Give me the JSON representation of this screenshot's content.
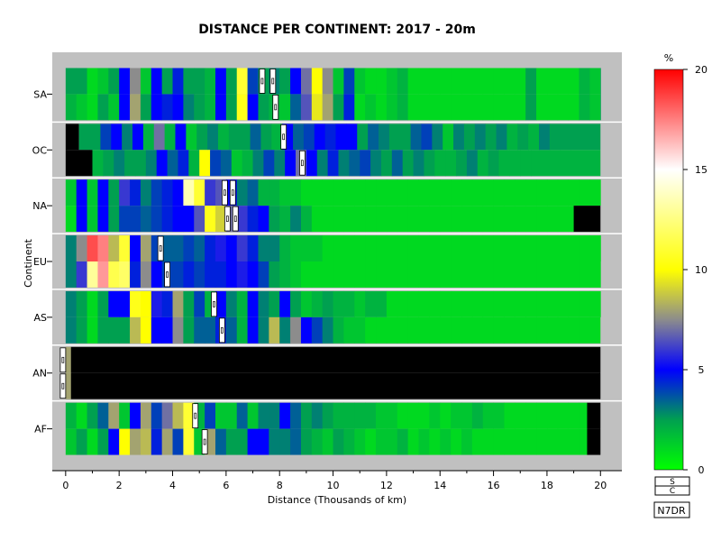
{
  "chart_data": {
    "type": "heatmap",
    "title": "DISTANCE PER CONTINENT: 2017 - 20m",
    "xlabel": "Distance (Thousands of km)",
    "ylabel": "Continent",
    "xlim": [
      -0.5,
      20.8
    ],
    "x_ticks": [
      "0",
      "2",
      "4",
      "6",
      "8",
      "10",
      "12",
      "14",
      "16",
      "18",
      "20"
    ],
    "colorbar": {
      "label": "%",
      "range": [
        0,
        20
      ],
      "ticks": [
        "0",
        "5",
        "10",
        "15",
        "20"
      ],
      "stops": [
        {
          "v": 0,
          "color": "#00ff00"
        },
        {
          "v": 2.5,
          "color": "#00a050"
        },
        {
          "v": 5,
          "color": "#0000ff"
        },
        {
          "v": 7.5,
          "color": "#8c8c8c"
        },
        {
          "v": 10,
          "color": "#ffff00"
        },
        {
          "v": 15,
          "color": "#ffffff"
        },
        {
          "v": 20,
          "color": "#ff0000"
        }
      ]
    },
    "no_data_color": "#000000",
    "continents": [
      {
        "name": "SA",
        "sub_rows": [
          {
            "zero_until": 0,
            "values": [
              2.5,
              2.5,
              1,
              1.5,
              2.5,
              5,
              7.5,
              1.5,
              5,
              2.5,
              4.5,
              2.5,
              2.5,
              2,
              5,
              2.5,
              11,
              4,
              2.5,
              3,
              2.5,
              5,
              7,
              10,
              7.5,
              1.5,
              4,
              1.5,
              1,
              1,
              1.5,
              2,
              1,
              1,
              1,
              1,
              1,
              1,
              1,
              1,
              1,
              1,
              1,
              2.5,
              1,
              1,
              1,
              1,
              2,
              1.5,
              3,
              2,
              1,
              1
            ],
            "nodata_from": null,
            "markers": [
              7.35,
              7.75
            ]
          },
          {
            "zero_until": 0,
            "values": [
              2,
              1.5,
              1,
              2.5,
              1.5,
              5,
              8,
              2.5,
              5,
              4.5,
              5,
              3,
              2.5,
              2,
              5,
              2.5,
              10.5,
              5,
              2.5,
              2,
              1.5,
              3.5,
              6.5,
              9.5,
              8,
              2.5,
              4.5,
              1,
              1.5,
              1,
              1.5,
              2,
              1,
              1,
              1,
              1,
              1,
              1,
              1,
              1,
              1,
              1,
              1,
              2.5,
              1,
              1,
              1,
              1,
              2,
              1.5,
              3,
              2,
              1,
              1
            ],
            "nodata_from": null,
            "markers": [
              7.85
            ]
          }
        ]
      },
      {
        "name": "OC",
        "sub_rows": [
          {
            "zero_until": 0.5,
            "values": [
              2.5,
              2.5,
              4,
              5,
              3,
              5,
              2,
              7,
              2,
              5,
              1.5,
              2.5,
              3,
              2,
              2.5,
              2.5,
              3.5,
              2.5,
              2,
              5,
              3.5,
              4,
              5,
              4.5,
              5,
              5,
              2.5,
              3.5,
              3,
              2.5,
              2.5,
              3.5,
              4,
              3,
              1.5,
              3,
              2.5,
              3,
              2.5,
              3,
              2,
              2.5,
              2,
              3,
              2.5,
              2.5
            ],
            "nodata_from": null,
            "markers": [
              8.15
            ]
          },
          {
            "zero_until": 1.0,
            "values": [
              2,
              2.5,
              3,
              2.5,
              2.5,
              3,
              5,
              3.5,
              4.5,
              2,
              10,
              4,
              3.5,
              1.5,
              2,
              3,
              4,
              3,
              5,
              7,
              5,
              3,
              4.5,
              3,
              3.5,
              4,
              3,
              2.5,
              3.5,
              2.5,
              3,
              2.5,
              2,
              2,
              2.5,
              3,
              2,
              2.5,
              2,
              2,
              2
            ],
            "nodata_from": null,
            "markers": [
              8.85
            ]
          }
        ]
      },
      {
        "name": "NA",
        "sub_rows": [
          {
            "zero_until": 0,
            "values": [
              1.5,
              5,
              1.5,
              5,
              2.5,
              6,
              4.5,
              3,
              4,
              4.5,
              5,
              13.5,
              11,
              6,
              6.5,
              5,
              3,
              3.5,
              2,
              2,
              1.5,
              1.5,
              1,
              1,
              1,
              1,
              1,
              1,
              1,
              1,
              1,
              1,
              1,
              1,
              1,
              1,
              1,
              1,
              1,
              1,
              1,
              1,
              1,
              1,
              1,
              1,
              1,
              1,
              1,
              1
            ],
            "nodata_from": null,
            "markers": [
              5.95,
              6.25
            ]
          },
          {
            "zero_until": 0,
            "values": [
              1,
              5,
              1.5,
              5,
              2.5,
              4,
              4,
              3.5,
              4,
              4.5,
              5,
              5,
              6.5,
              10.5,
              9,
              7,
              6,
              4.5,
              5,
              2.5,
              2,
              3,
              2,
              1,
              1,
              1,
              1,
              1,
              1,
              1,
              1,
              1,
              1,
              1,
              1,
              1,
              1,
              1,
              1,
              1,
              1,
              1,
              1,
              1,
              1,
              1,
              1,
              1,
              1
            ],
            "nodata_from": 19.0,
            "markers": [
              6.05,
              6.35
            ]
          }
        ]
      },
      {
        "name": "EU",
        "sub_rows": [
          {
            "zero_until": 0,
            "values": [
              3,
              7.5,
              18.5,
              17.5,
              8.5,
              11,
              5,
              8,
              4,
              3.5,
              3.5,
              4,
              3.5,
              4.5,
              5.5,
              5,
              6,
              4.5,
              3,
              3,
              2,
              1.5,
              1.5,
              1.5,
              1,
              1,
              1,
              1,
              1,
              1,
              1,
              1,
              1,
              1,
              1,
              1,
              1,
              1,
              1,
              1,
              1,
              1,
              1,
              1,
              1,
              1,
              1,
              1,
              1,
              1,
              1,
              1
            ],
            "nodata_from": null,
            "markers": [
              3.55
            ]
          },
          {
            "zero_until": 0,
            "values": [
              3,
              6,
              13,
              17,
              11.5,
              12,
              4.5,
              7.5,
              5,
              4,
              4,
              4.5,
              4,
              4.5,
              4.5,
              5,
              5.5,
              5,
              4,
              2.5,
              2,
              1.5,
              1,
              1,
              1,
              1,
              1,
              1,
              1,
              1,
              1,
              1,
              1,
              1,
              1,
              1,
              1,
              1,
              1,
              1,
              1,
              1,
              1,
              1,
              1,
              1,
              1,
              1,
              1,
              1
            ],
            "nodata_from": null,
            "markers": [
              3.8
            ]
          }
        ]
      },
      {
        "name": "AS",
        "sub_rows": [
          {
            "zero_until": 0,
            "values": [
              3,
              2.5,
              1,
              2.5,
              5,
              5,
              10.5,
              10,
              5.5,
              4.5,
              8,
              2.5,
              4,
              2,
              5,
              3,
              2,
              5,
              3,
              2.5,
              5,
              2.5,
              1.5,
              2,
              2.5,
              2,
              2,
              1.5,
              2,
              2,
              1,
              1,
              1,
              1,
              1,
              1,
              1,
              1,
              1,
              1,
              1,
              1,
              1,
              1,
              1,
              1,
              1,
              1,
              1,
              1
            ],
            "nodata_from": null,
            "markers": [
              5.55
            ]
          },
          {
            "zero_until": 0,
            "values": [
              3,
              2.5,
              1,
              2.5,
              2.5,
              2.5,
              8.5,
              10,
              5,
              5,
              7.5,
              2.5,
              3.5,
              3.5,
              4.5,
              3.5,
              2,
              5,
              3,
              8.5,
              3,
              7.5,
              5,
              4,
              3,
              2,
              1.5,
              1.5,
              1,
              1,
              1,
              1,
              1,
              1,
              1,
              1,
              1,
              1,
              1,
              1,
              1,
              1,
              1,
              1,
              1,
              1,
              1,
              1
            ],
            "nodata_from": null,
            "markers": [
              5.85
            ]
          }
        ]
      },
      {
        "name": "AN",
        "sub_rows": [
          {
            "zero_until": 0,
            "values": [
              8
            ],
            "nodata_from": 0.2,
            "markers": [
              -0.1
            ]
          },
          {
            "zero_until": 0,
            "values": [
              8
            ],
            "nodata_from": 0.2,
            "markers": [
              -0.1
            ]
          }
        ]
      },
      {
        "name": "AF",
        "sub_rows": [
          {
            "zero_until": 0,
            "values": [
              2,
              1,
              2.5,
              3.5,
              8,
              1.5,
              5,
              8,
              4,
              7,
              8.5,
              11,
              2,
              4,
              1.5,
              1.5,
              3.5,
              1.5,
              3,
              3,
              5,
              3.5,
              2.5,
              3,
              2.5,
              2,
              2,
              2,
              2,
              1.5,
              1.5,
              1,
              1,
              1,
              1.5,
              1,
              1.5,
              1.5,
              2,
              1.5,
              1.5,
              1,
              1,
              1,
              1,
              1,
              1,
              1,
              1,
              1
            ],
            "nodata_from": 19.5,
            "markers": [
              4.85
            ]
          },
          {
            "zero_until": 0,
            "values": [
              1.5,
              2.5,
              1,
              2.5,
              5,
              10,
              8,
              8.5,
              4.5,
              8,
              4,
              11,
              1.5,
              8,
              3.5,
              2.5,
              2.5,
              5,
              5,
              3,
              3,
              3.5,
              2.5,
              2,
              1.5,
              2.5,
              2,
              1.5,
              1,
              1.5,
              1.5,
              2,
              1,
              1.5,
              1,
              1.5,
              1,
              1.5,
              1,
              1,
              1,
              1,
              1,
              1,
              1,
              1,
              1,
              1,
              1,
              1
            ],
            "nodata_from": 19.5,
            "markers": [
              5.2
            ]
          }
        ]
      }
    ],
    "legend_boxes": [
      "S",
      "C"
    ],
    "footer_code": "N7DR"
  }
}
